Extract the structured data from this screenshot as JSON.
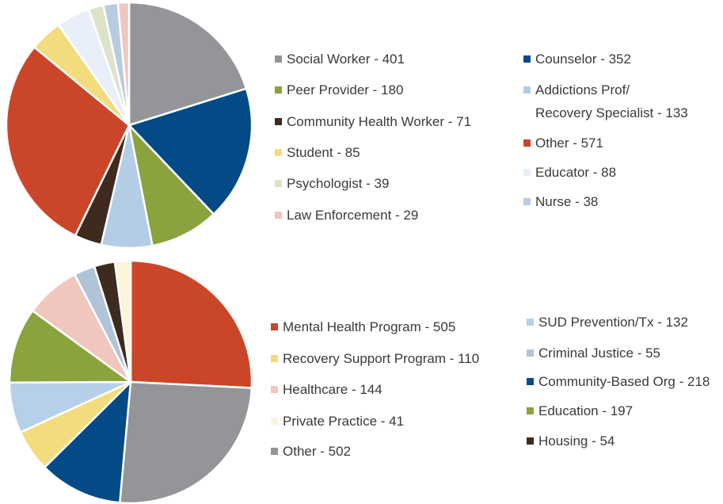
{
  "chart_data": [
    {
      "type": "pie",
      "categories": [
        "Social Worker - 401",
        "Counselor - 352",
        "Peer Provider - 180",
        "Addictions Prof/\nRecovery Specialist - 133",
        "Community Health Worker - 71",
        "Other - 571",
        "Student - 85",
        "Educator - 88",
        "Psychologist - 39",
        "Nurse - 38",
        "Law Enforcement - 29"
      ],
      "values": [
        401,
        352,
        180,
        133,
        71,
        571,
        85,
        88,
        39,
        38,
        29
      ],
      "colors": [
        "#939598",
        "#034a86",
        "#8ba33d",
        "#b3cde6",
        "#3e2a1e",
        "#cb4628",
        "#f2dc7e",
        "#e8eff8",
        "#dde3c9",
        "#b9cbe0",
        "#f0c6bf"
      ]
    },
    {
      "type": "pie",
      "categories": [
        "Mental Health Program - 505",
        "Other - 502",
        "Community-Based Org - 218",
        "Recovery Support Program - 110",
        "SUD Prevention/Tx - 132",
        "Education - 197",
        "Healthcare - 144",
        "Criminal Justice - 55",
        "Housing - 54",
        "Private Practice - 41"
      ],
      "values": [
        505,
        502,
        218,
        110,
        132,
        197,
        144,
        55,
        54,
        41
      ],
      "colors": [
        "#cb4628",
        "#939598",
        "#034a86",
        "#f2dc7e",
        "#b6d0ea",
        "#8ba33d",
        "#f0c6bf",
        "#b0c4d8",
        "#3e2a1e",
        "#fdf4d8"
      ]
    }
  ]
}
